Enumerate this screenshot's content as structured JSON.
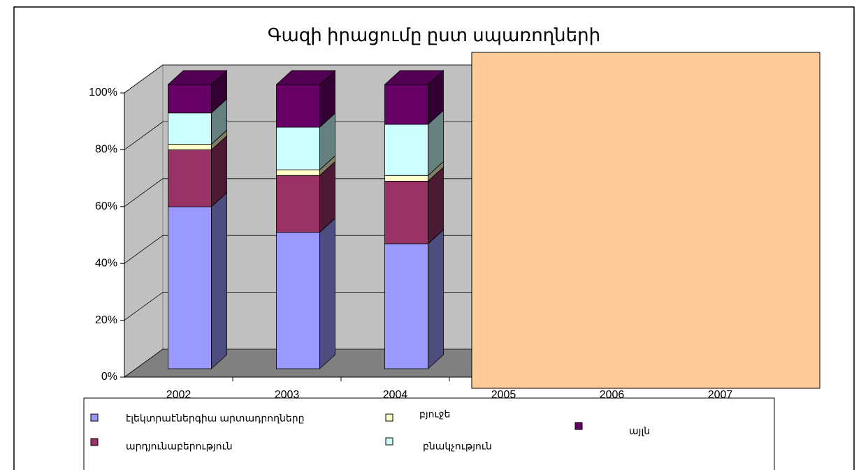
{
  "chart_data": {
    "type": "stacked_bar_3d",
    "title": "Գազի իրացումը ըստ սպառողների",
    "categories": [
      "2002",
      "2003",
      "2004",
      "2005",
      "2006",
      "2007"
    ],
    "series": [
      {
        "name": "էլեկտրաէներգիա արտադրողները",
        "color": "#9999ff",
        "values": [
          57,
          48,
          44,
          null,
          null,
          null
        ]
      },
      {
        "name": "արդյունաբերություն",
        "color": "#993366",
        "values": [
          20,
          20,
          22,
          null,
          null,
          null
        ]
      },
      {
        "name": "բյուջե",
        "color": "#ffffcc",
        "values": [
          2,
          2,
          2,
          null,
          null,
          null
        ]
      },
      {
        "name": "բնակչություն",
        "color": "#ccffff",
        "values": [
          11,
          15,
          18,
          null,
          null,
          null
        ]
      },
      {
        "name": "այլն",
        "color": "#660066",
        "values": [
          10,
          15,
          14,
          null,
          null,
          null
        ]
      }
    ],
    "ylim": [
      0,
      100
    ],
    "yticks": [
      {
        "value": 0,
        "label": "0%"
      },
      {
        "value": 20,
        "label": "20%"
      },
      {
        "value": 40,
        "label": "40%"
      },
      {
        "value": 60,
        "label": "60%"
      },
      {
        "value": 80,
        "label": "80%"
      },
      {
        "value": 100,
        "label": "100%"
      }
    ],
    "grid": true
  }
}
